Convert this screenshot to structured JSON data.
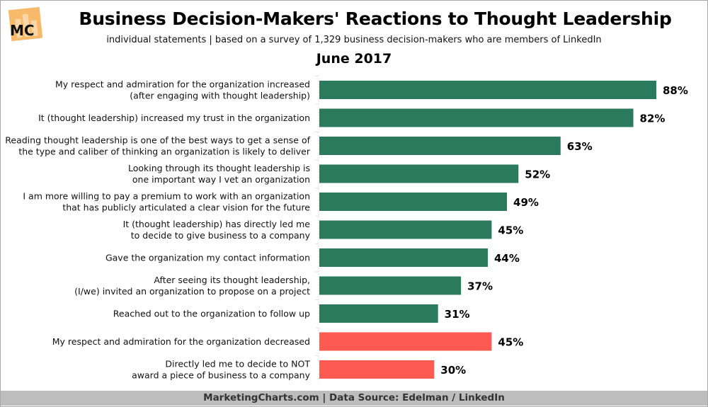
{
  "header": {
    "logo_text": "MC",
    "title": "Business Decision-Makers' Reactions to Thought Leadership",
    "subtitle": "individual statements | based on a survey of 1,329 business decision-makers who are members of LinkedIn",
    "period": "June 2017"
  },
  "footer": {
    "text": "MarketingCharts.com | Data Source: Edelman / LinkedIn"
  },
  "colors": {
    "positive": "#2b7a5e",
    "negative": "#ff5a52",
    "footer_bg": "#bdbdbd",
    "logo": "#f7b96a"
  },
  "chart_data": {
    "type": "bar",
    "orientation": "horizontal",
    "title": "Business Decision-Makers' Reactions to Thought Leadership",
    "subtitle": "individual statements | based on a survey of 1,329 business decision-makers who are members of LinkedIn",
    "xlabel": "",
    "ylabel": "",
    "xlim": [
      0,
      88
    ],
    "grid": false,
    "legend": "none",
    "categories": [
      [
        "My respect and admiration for the organization increased",
        "(after engaging with thought leadership)"
      ],
      [
        "It (thought leadership) increased my trust in the organization"
      ],
      [
        "Reading thought leadership is one of the best ways to get a sense of",
        "the type and caliber of thinking an organization is likely to deliver"
      ],
      [
        "Looking through its thought leadership is",
        "one important way I vet an organization"
      ],
      [
        "I am more willing to pay a premium to work with an organization",
        "that has publicly articulated a clear vision for the future"
      ],
      [
        "It (thought leadership) has directly led me",
        "to decide to give business to a company"
      ],
      [
        "Gave the organization my contact information"
      ],
      [
        "After seeing its thought leadership,",
        "(I/we) invited an organization to propose on a project"
      ],
      [
        "Reached out to the organization to follow up"
      ],
      [
        "My respect and admiration for the organization decreased"
      ],
      [
        "Directly led me to decide to NOT",
        "award a piece of business to a company"
      ]
    ],
    "values": [
      88,
      82,
      63,
      52,
      49,
      45,
      44,
      37,
      31,
      45,
      30
    ],
    "value_labels": [
      "88%",
      "82%",
      "63%",
      "52%",
      "49%",
      "45%",
      "44%",
      "37%",
      "31%",
      "45%",
      "30%"
    ],
    "sentiment": [
      "positive",
      "positive",
      "positive",
      "positive",
      "positive",
      "positive",
      "positive",
      "positive",
      "positive",
      "negative",
      "negative"
    ],
    "unit": "%"
  }
}
